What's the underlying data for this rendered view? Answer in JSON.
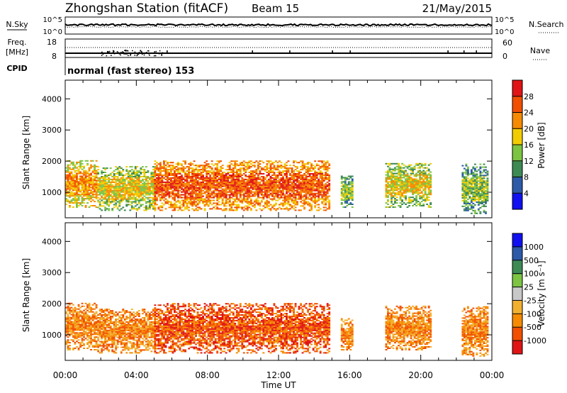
{
  "header": {
    "title": "Zhongshan Station (fitACF)",
    "beam": "Beam 15",
    "date": "21/May/2015"
  },
  "strip_panels": {
    "nsky_label": "N.Sky",
    "nsearch_label": "N.Search",
    "nsky_ticks": [
      "10^5",
      "10^0"
    ],
    "nsearch_ticks": [
      "10^5",
      "10^0"
    ],
    "freq_label": "Freq.",
    "freq_unit": "[MHz]",
    "freq_ticks": [
      "18",
      "8"
    ],
    "nave_label": "Nave",
    "nave_ticks": [
      "60",
      "0"
    ],
    "cpid_label": "CPID",
    "cpid_text": "normal (fast stereo) 153"
  },
  "x_axis": {
    "label": "Time UT",
    "ticks": [
      "00:00",
      "04:00",
      "08:00",
      "12:00",
      "16:00",
      "20:00",
      "00:00"
    ]
  },
  "colors": {
    "power": [
      "#1010f0",
      "#2c5aa8",
      "#3d8a55",
      "#7cc442",
      "#f2cc00",
      "#f68a00",
      "#f24f00",
      "#e01414"
    ],
    "velocity": [
      "#e01414",
      "#f24f00",
      "#f68a00",
      "#f2b030",
      "#c8c8c8",
      "#7cc442",
      "#3d8a55",
      "#2c5aa8",
      "#1010f0"
    ]
  },
  "chart_data": [
    {
      "type": "heatmap",
      "panel": "power",
      "ylabel": "Slant Range [km]",
      "ylim": [
        180,
        4600
      ],
      "y_ticks": [
        1000,
        2000,
        3000,
        4000
      ],
      "x_range_hours": [
        0,
        24
      ],
      "colorbar": {
        "label": "Power [dB]",
        "ticks": [
          "4",
          "8",
          "12",
          "16",
          "20",
          "24",
          "28"
        ],
        "range": [
          0,
          32
        ]
      },
      "echo_regions": [
        {
          "t_start": 0.0,
          "t_end": 1.8,
          "r_min": 500,
          "r_max": 2000,
          "level": 5
        },
        {
          "t_start": 1.8,
          "t_end": 5.0,
          "r_min": 400,
          "r_max": 1800,
          "level": 4
        },
        {
          "t_start": 5.0,
          "t_end": 14.8,
          "r_min": 400,
          "r_max": 2000,
          "level": 6
        },
        {
          "t_start": 15.5,
          "t_end": 16.1,
          "r_min": 500,
          "r_max": 1500,
          "level": 3
        },
        {
          "t_start": 18.0,
          "t_end": 20.6,
          "r_min": 500,
          "r_max": 1900,
          "level": 4
        },
        {
          "t_start": 22.3,
          "t_end": 23.8,
          "r_min": 300,
          "r_max": 1900,
          "level": 3
        }
      ]
    },
    {
      "type": "heatmap",
      "panel": "velocity",
      "ylabel": "Slant Range [km]",
      "ylim": [
        180,
        4600
      ],
      "y_ticks": [
        1000,
        2000,
        3000,
        4000
      ],
      "x_range_hours": [
        0,
        24
      ],
      "colorbar": {
        "label": "Velocity [m s⁻¹]",
        "ticks": [
          "1000",
          "500",
          "100",
          "25",
          "-25",
          "-100",
          "-500",
          "-1000"
        ]
      },
      "echo_regions": [
        {
          "t_start": 0.0,
          "t_end": 1.8,
          "r_min": 500,
          "r_max": 2000,
          "level": 2
        },
        {
          "t_start": 1.8,
          "t_end": 5.0,
          "r_min": 400,
          "r_max": 1800,
          "level": 2
        },
        {
          "t_start": 5.0,
          "t_end": 14.8,
          "r_min": 400,
          "r_max": 2000,
          "level": 1
        },
        {
          "t_start": 15.5,
          "t_end": 16.1,
          "r_min": 500,
          "r_max": 1500,
          "level": 2
        },
        {
          "t_start": 18.0,
          "t_end": 20.6,
          "r_min": 500,
          "r_max": 1900,
          "level": 2
        },
        {
          "t_start": 22.3,
          "t_end": 23.8,
          "r_min": 300,
          "r_max": 1900,
          "level": 2
        }
      ]
    }
  ]
}
